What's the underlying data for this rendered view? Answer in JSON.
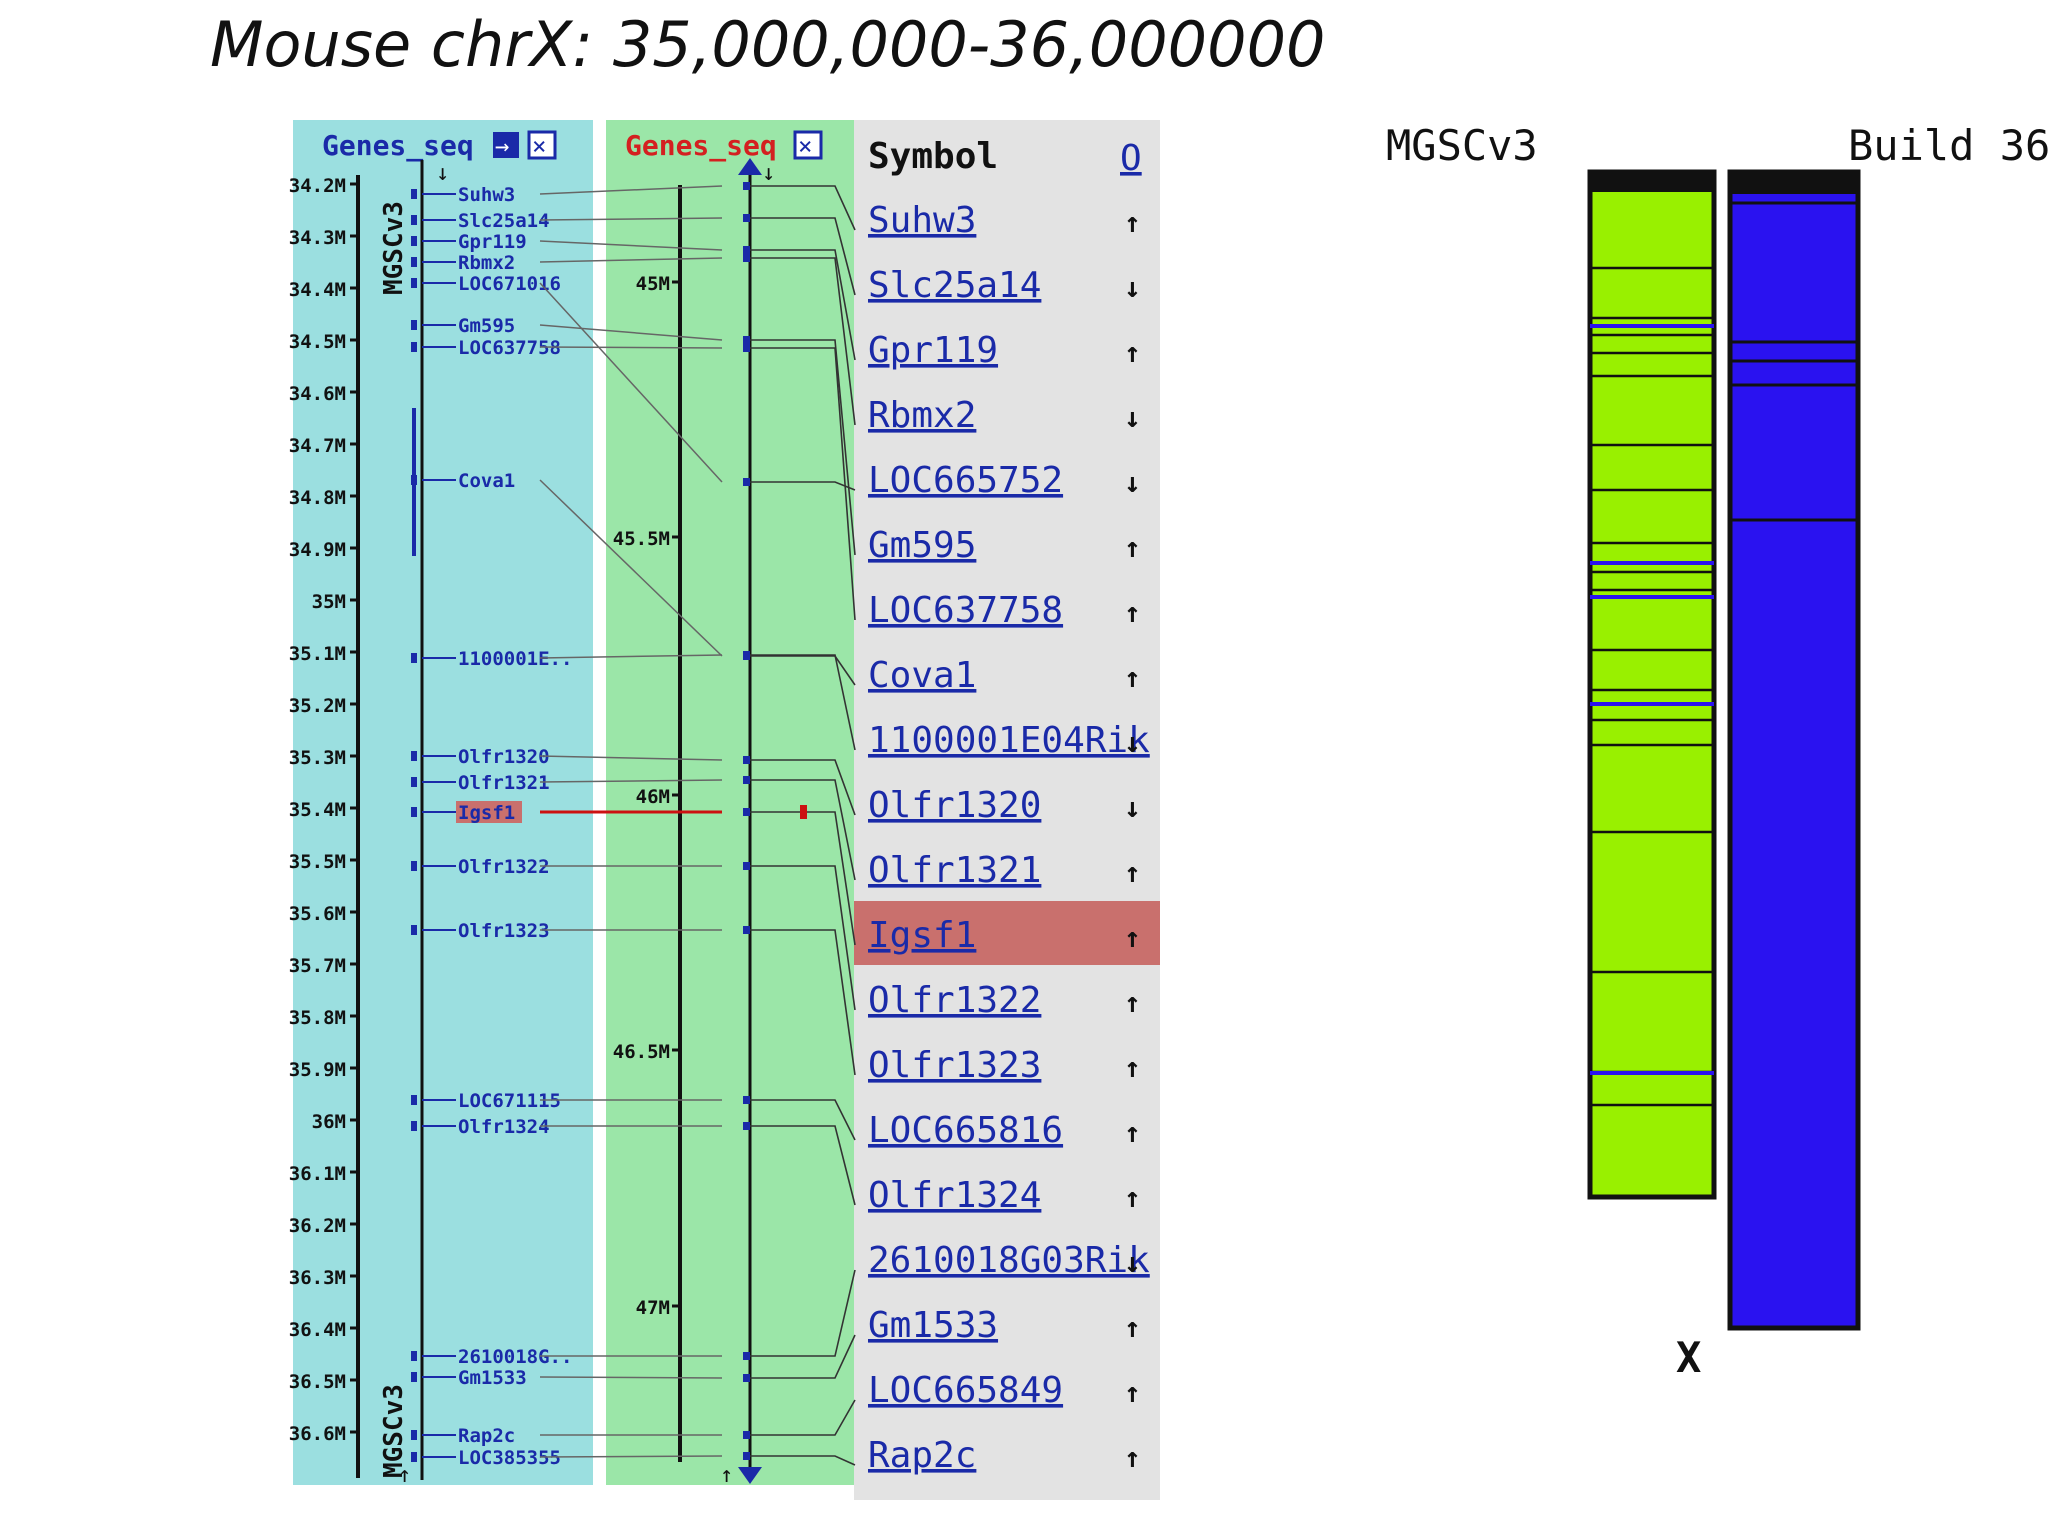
{
  "title": "Mouse chrX: 35,000,000-36,000000",
  "left_track": {
    "header": "Genes_seq",
    "assembly_label": "MGSCv3",
    "ticks": [
      "34.2M",
      "34.3M",
      "34.4M",
      "34.5M",
      "34.6M",
      "34.7M",
      "34.8M",
      "34.9M",
      "35M",
      "35.1M",
      "35.2M",
      "35.3M",
      "35.4M",
      "35.5M",
      "35.6M",
      "35.7M",
      "35.8M",
      "35.9M",
      "36M",
      "36.1M",
      "36.2M",
      "36.3M",
      "36.4M",
      "36.5M",
      "36.6M"
    ],
    "genes": [
      "Suhw3",
      "Slc25a14",
      "Gpr119",
      "Rbmx2",
      "LOC671016",
      "Gm595",
      "LOC637758",
      "Cova1",
      "1100001E..",
      "Olfr1320",
      "Olfr1321",
      "Igsf1",
      "Olfr1322",
      "Olfr1323",
      "LOC671115",
      "Olfr1324",
      "2610018G..",
      "Gm1533",
      "Rap2c",
      "LOC385355"
    ]
  },
  "right_track": {
    "header": "Genes_seq",
    "ticks": [
      "45M",
      "45.5M",
      "46M",
      "46.5M",
      "47M"
    ]
  },
  "symbol_panel": {
    "header": "Symbol",
    "header_sort": "O",
    "highlighted": "Igsf1",
    "rows": [
      {
        "symbol": "Suhw3",
        "arrow": "↑"
      },
      {
        "symbol": "Slc25a14",
        "arrow": "↓"
      },
      {
        "symbol": "Gpr119",
        "arrow": "↑"
      },
      {
        "symbol": "Rbmx2",
        "arrow": "↓"
      },
      {
        "symbol": "LOC665752",
        "arrow": "↓"
      },
      {
        "symbol": "Gm595",
        "arrow": "↑"
      },
      {
        "symbol": "LOC637758",
        "arrow": "↑"
      },
      {
        "symbol": "Cova1",
        "arrow": "↑"
      },
      {
        "symbol": "1100001E04Rik",
        "arrow": "↓"
      },
      {
        "symbol": "Olfr1320",
        "arrow": "↓"
      },
      {
        "symbol": "Olfr1321",
        "arrow": "↑"
      },
      {
        "symbol": "Igsf1",
        "arrow": "↑"
      },
      {
        "symbol": "Olfr1322",
        "arrow": "↑"
      },
      {
        "symbol": "Olfr1323",
        "arrow": "↑"
      },
      {
        "symbol": "LOC665816",
        "arrow": "↑"
      },
      {
        "symbol": "Olfr1324",
        "arrow": "↑"
      },
      {
        "symbol": "2610018G03Rik",
        "arrow": "↓"
      },
      {
        "symbol": "Gm1533",
        "arrow": "↑"
      },
      {
        "symbol": "LOC665849",
        "arrow": "↑"
      },
      {
        "symbol": "Rap2c",
        "arrow": "↑"
      }
    ]
  },
  "chromosomes": {
    "left_label": "MGSCv3",
    "right_label": "Build 36",
    "x_label": "X"
  },
  "colors": {
    "left_bg": "#9bdfe0",
    "mid_bg": "#9be6a8",
    "symbol_bg": "#e3e3e3",
    "highlight": "#c9706d",
    "gene_blue": "#1a2aa8",
    "header_red": "#d42020",
    "chrom_green": "#99f000",
    "chrom_blue": "#2a12f0",
    "igsf1_red": "#cc1111"
  }
}
